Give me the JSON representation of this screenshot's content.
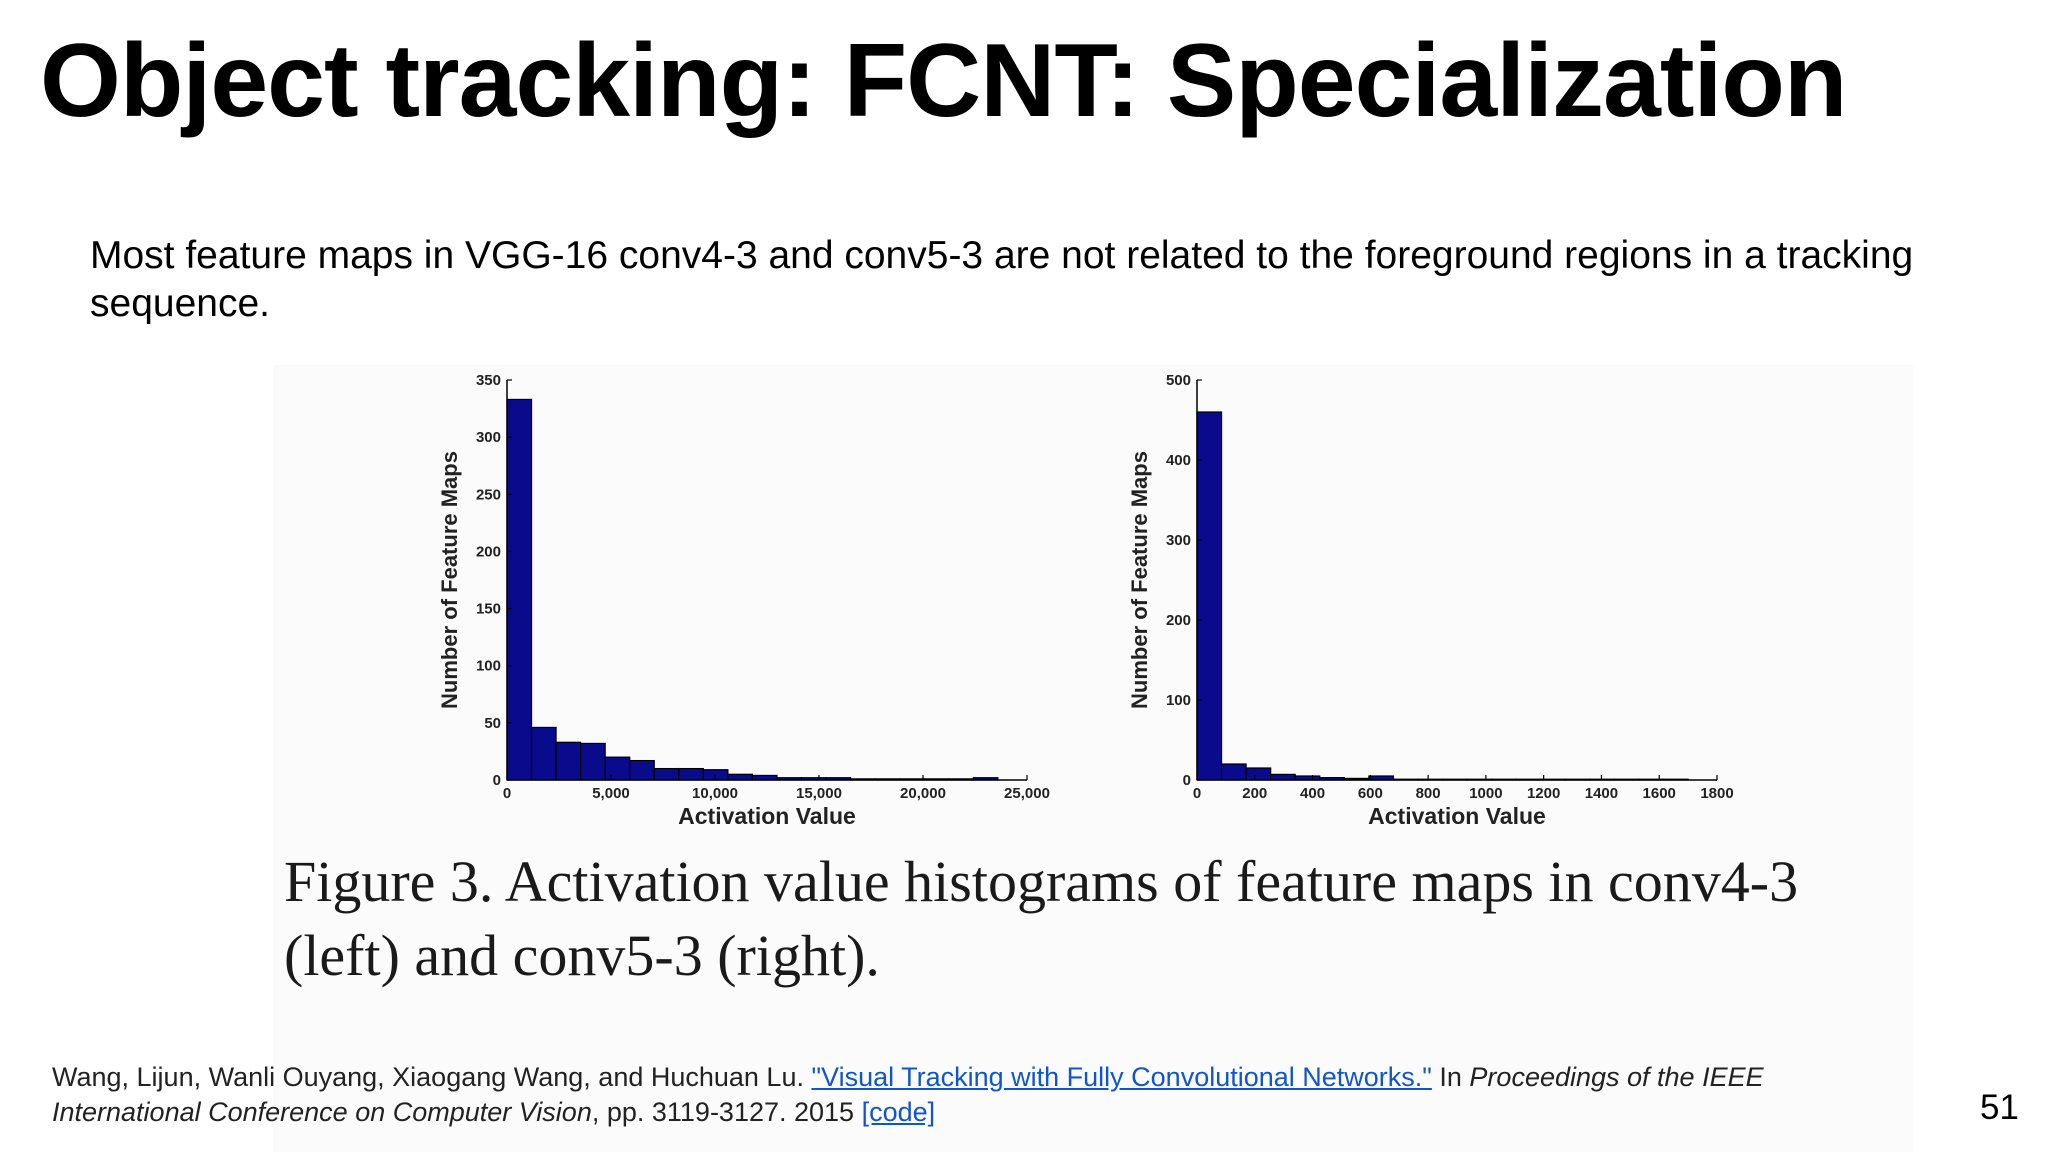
{
  "slide": {
    "title": "Object tracking: FCNT: Specialization",
    "body": "Most feature maps in VGG-16 conv4-3 and conv5-3 are not related to the foreground regions in a tracking sequence.",
    "caption": "Figure 3. Activation value histograms of feature maps in conv4-3 (left) and conv5-3 (right).",
    "citation": {
      "authors": "Wang, Lijun, Wanli Ouyang, Xiaogang Wang, and Huchuan Lu. ",
      "paper_link": "\"Visual Tracking with Fully Convolutional Networks.\"",
      "in_text": " In ",
      "venue_line1": "Proceedings of the IEEE",
      "venue_line2": "International Conference on Computer Vision",
      "pages": ", pp. 3119-3127. 2015 ",
      "code_link": "[code]"
    },
    "page_number": "51"
  },
  "colors": {
    "bar_fill": "#0a0a8c",
    "bar_stroke": "#000000",
    "link": "#1155cc"
  },
  "chart_data": [
    {
      "type": "bar",
      "xlabel": "Activation Value",
      "ylabel": "Number of Feature Maps",
      "xlim": [
        0,
        25000
      ],
      "ylim": [
        0,
        350
      ],
      "xticks": [
        0,
        5000,
        10000,
        15000,
        20000,
        25000
      ],
      "xtick_labels": [
        "0",
        "5,000",
        "10,000",
        "15,000",
        "20,000",
        "25,000"
      ],
      "yticks": [
        0,
        50,
        100,
        150,
        200,
        250,
        300,
        350
      ],
      "ytick_labels": [
        "0",
        "50",
        "100",
        "150",
        "200",
        "250",
        "300",
        "350"
      ],
      "bin_width": 1180,
      "bin_starts": [
        0,
        1180,
        2360,
        3540,
        4720,
        5900,
        7080,
        8260,
        9440,
        10620,
        11800,
        12980,
        14160,
        15340,
        16520,
        17700,
        18880,
        20060,
        21240,
        22420
      ],
      "values": [
        333,
        46,
        33,
        32,
        20,
        17,
        10,
        10,
        9,
        5,
        4,
        2,
        2,
        2,
        1,
        1,
        1,
        1,
        1,
        2
      ]
    },
    {
      "type": "bar",
      "xlabel": "Activation Value",
      "ylabel": "Number of Feature Maps",
      "xlim": [
        0,
        1800
      ],
      "ylim": [
        0,
        500
      ],
      "xticks": [
        0,
        200,
        400,
        600,
        800,
        1000,
        1200,
        1400,
        1600,
        1800
      ],
      "xtick_labels": [
        "0",
        "200",
        "400",
        "600",
        "800",
        "1000",
        "1200",
        "1400",
        "1600",
        "1800"
      ],
      "yticks": [
        0,
        100,
        200,
        300,
        400,
        500
      ],
      "ytick_labels": [
        "0",
        "100",
        "200",
        "300",
        "400",
        "500"
      ],
      "bin_width": 85,
      "bin_starts": [
        0,
        85,
        170,
        255,
        340,
        425,
        510,
        595,
        680,
        765,
        850,
        935,
        1020,
        1105,
        1190,
        1275,
        1360,
        1445,
        1530,
        1615
      ],
      "values": [
        460,
        20,
        15,
        7,
        5,
        3,
        2,
        5,
        1,
        1,
        1,
        1,
        1,
        1,
        1,
        1,
        1,
        1,
        1,
        1
      ]
    }
  ]
}
